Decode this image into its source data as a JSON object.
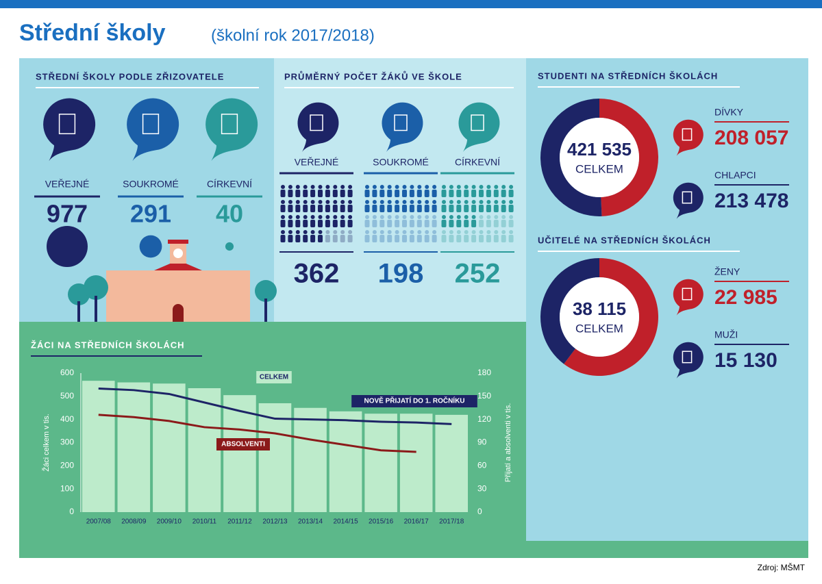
{
  "header": {
    "title": "Střední školy",
    "subtitle": "(školní rok 2017/2018)"
  },
  "founders": {
    "title": "STŘEDNÍ ŠKOLY PODLE ZŘIZOVATELE",
    "items": [
      {
        "label": "VEŘEJNÉ",
        "value": 977,
        "color": "#1d2466"
      },
      {
        "label": "SOUKROMÉ",
        "value": 291,
        "color": "#1b5fa8"
      },
      {
        "label": "CÍRKEVNÍ",
        "value": 40,
        "color": "#2a9a9a"
      }
    ]
  },
  "school_size": {
    "title": "PRŮMĚRNÝ POČET ŽÁKŮ VE ŠKOLE",
    "items": [
      {
        "label": "VEŘEJNÉ",
        "value": 362,
        "color": "#1d2466"
      },
      {
        "label": "SOUKROMÉ",
        "value": 198,
        "color": "#1b5fa8"
      },
      {
        "label": "CÍRKEVNÍ",
        "value": 252,
        "color": "#2a9a9a"
      }
    ]
  },
  "students": {
    "title": "STUDENTI NA STŘEDNÍCH ŠKOLÁCH",
    "total": {
      "value": 421535,
      "label": "421 535"
    },
    "total_label": "CELKEM",
    "parts": [
      {
        "label": "DÍVKY",
        "value": 208057,
        "value_label": "208 057",
        "color": "#c0202a"
      },
      {
        "label": "CHLAPCI",
        "value": 213478,
        "value_label": "213 478",
        "color": "#1d2466"
      }
    ]
  },
  "teachers": {
    "title": "UČITELÉ NA STŘEDNÍCH ŠKOLÁCH",
    "total": {
      "value": 38115,
      "label": "38 115"
    },
    "total_label": "CELKEM",
    "parts": [
      {
        "label": "ŽENY",
        "value": 22985,
        "value_label": "22 985",
        "color": "#c0202a"
      },
      {
        "label": "MUŽI",
        "value": 15130,
        "value_label": "15 130",
        "color": "#1d2466"
      }
    ]
  },
  "chart_data": {
    "type": "bar-line",
    "title": "ŽÁCI NA STŘEDNÍCH ŠKOLÁCH",
    "y_label": "Žáci celkem v tis.",
    "y2_label": "Přijatí a absolventi v tis.",
    "categories": [
      "2007/08",
      "2008/09",
      "2009/10",
      "2010/11",
      "2011/12",
      "2012/13",
      "2013/14",
      "2014/15",
      "2015/16",
      "2016/17",
      "2017/18"
    ],
    "series": [
      {
        "name": "CELKEM",
        "color": "#bdebcb",
        "type": "bar",
        "values": [
          567,
          560,
          555,
          535,
          505,
          470,
          450,
          435,
          425,
          425,
          420
        ]
      },
      {
        "name": "NOVĚ PŘIJATÍ DO 1. ROČNÍKU",
        "color": "#1d2466",
        "type": "line",
        "axis": "y2",
        "values": [
          160,
          158,
          153,
          142,
          131,
          121,
          120,
          119,
          117,
          116,
          114
        ]
      },
      {
        "name": "ABSOLVENTI",
        "color": "#8b1a1a",
        "type": "line",
        "axis": "y2",
        "values": [
          126,
          123,
          118,
          110,
          107,
          102,
          94,
          87,
          80,
          78,
          null
        ]
      }
    ],
    "ylim": [
      0,
      600
    ],
    "yticks": [
      0,
      100,
      200,
      300,
      400,
      500,
      600
    ],
    "y2lim": [
      0,
      180
    ],
    "y2ticks": [
      0,
      30,
      60,
      90,
      120,
      150,
      180
    ]
  },
  "source": "Zdroj: MŠMT"
}
